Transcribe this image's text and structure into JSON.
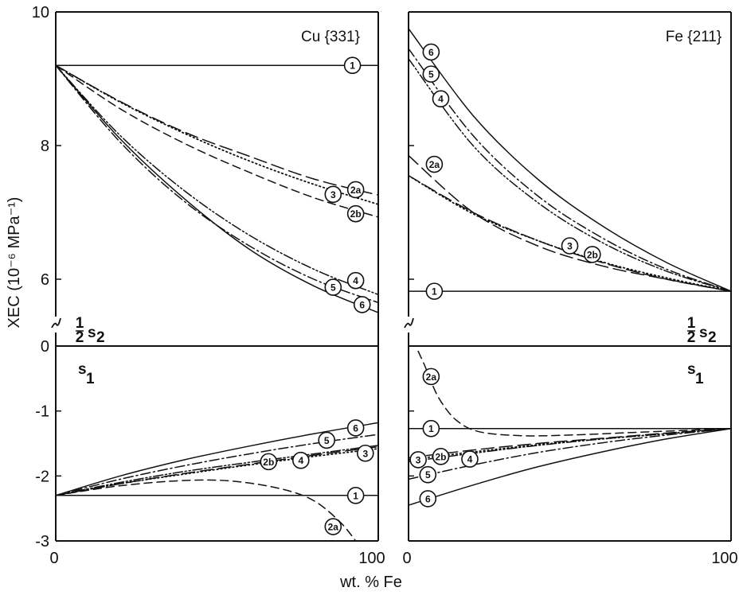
{
  "chart_data": {
    "type": "line",
    "xlabel": "wt. % Fe",
    "ylabel": "XEC (10⁻⁶ MPa⁻¹)",
    "xlim": [
      0,
      100
    ],
    "ylim_upper": [
      5,
      10
    ],
    "ylim_lower": [
      -3,
      0
    ],
    "yticks_upper": [
      "6",
      "8",
      "10"
    ],
    "yticks_lower": [
      "-3",
      "-2",
      "-1",
      "0"
    ],
    "yticks_upper_values": [
      6,
      8,
      10
    ],
    "yticks_lower_values": [
      -3,
      -2,
      -1,
      0
    ],
    "xtick_labels_left": [
      "0",
      "100"
    ],
    "xtick_labels_right": [
      "0",
      "100"
    ],
    "upper_region_label": {
      "frac": "1/2",
      "sym": "s",
      "sub": "2"
    },
    "lower_region_label": {
      "sym": "s",
      "sub": "1"
    },
    "panels": [
      {
        "label": "Cu {331}",
        "upper_series": [
          {
            "id": "1",
            "style": "solid",
            "x": [
              0,
              100
            ],
            "y": [
              9.2,
              9.2
            ],
            "marker": [
              92,
              9.2
            ]
          },
          {
            "id": "2a",
            "style": "longdash",
            "x": [
              0,
              20,
              40,
              60,
              80,
              100
            ],
            "y": [
              9.2,
              8.66,
              8.2,
              7.84,
              7.5,
              7.26
            ],
            "marker": [
              93,
              7.34
            ]
          },
          {
            "id": "2b",
            "style": "dash",
            "x": [
              0,
              20,
              40,
              60,
              80,
              100
            ],
            "y": [
              9.2,
              8.55,
              8.03,
              7.6,
              7.22,
              6.93
            ],
            "marker": [
              93,
              6.98
            ]
          },
          {
            "id": "3",
            "style": "dotted",
            "x": [
              0,
              20,
              40,
              60,
              80,
              100
            ],
            "y": [
              9.2,
              8.65,
              8.18,
              7.77,
              7.42,
              7.12
            ],
            "marker": [
              86,
              7.27
            ]
          },
          {
            "id": "4",
            "style": "dashdotdot",
            "x": [
              0,
              20,
              40,
              60,
              80,
              100
            ],
            "y": [
              9.2,
              8.15,
              7.32,
              6.66,
              6.15,
              5.77
            ],
            "marker": [
              93,
              5.98
            ]
          },
          {
            "id": "5",
            "style": "dashdot",
            "x": [
              0,
              20,
              40,
              60,
              80,
              100
            ],
            "y": [
              9.2,
              8.05,
              7.16,
              6.5,
              6.0,
              5.65
            ],
            "marker": [
              86,
              5.88
            ]
          },
          {
            "id": "6",
            "style": "solid",
            "x": [
              0,
              20,
              40,
              60,
              80,
              100
            ],
            "y": [
              9.2,
              8.1,
              7.2,
              6.45,
              5.9,
              5.5
            ],
            "marker": [
              95,
              5.62
            ]
          }
        ],
        "lower_series": [
          {
            "id": "1",
            "style": "solid",
            "x": [
              0,
              100
            ],
            "y": [
              -2.3,
              -2.3
            ],
            "marker": [
              93,
              -2.3
            ]
          },
          {
            "id": "2a",
            "style": "dash",
            "x": [
              0,
              20,
              40,
              55,
              70,
              80,
              88,
              93
            ],
            "y": [
              -2.3,
              -2.15,
              -2.07,
              -2.08,
              -2.2,
              -2.38,
              -2.7,
              -3.0
            ],
            "marker": [
              86,
              -2.78
            ]
          },
          {
            "id": "2b",
            "style": "longdash",
            "x": [
              0,
              20,
              40,
              60,
              80,
              100
            ],
            "y": [
              -2.3,
              -2.12,
              -1.96,
              -1.82,
              -1.68,
              -1.55
            ],
            "marker": [
              66,
              -1.78
            ]
          },
          {
            "id": "3",
            "style": "dotted",
            "x": [
              0,
              20,
              40,
              60,
              80,
              100
            ],
            "y": [
              -2.3,
              -2.12,
              -1.97,
              -1.83,
              -1.7,
              -1.58
            ],
            "marker": [
              96,
              -1.65
            ]
          },
          {
            "id": "4",
            "style": "dashdotdot",
            "x": [
              0,
              20,
              40,
              60,
              80,
              100
            ],
            "y": [
              -2.3,
              -2.1,
              -1.93,
              -1.79,
              -1.66,
              -1.53
            ],
            "marker": [
              76,
              -1.76
            ]
          },
          {
            "id": "5",
            "style": "dashdot",
            "x": [
              0,
              20,
              40,
              60,
              80,
              100
            ],
            "y": [
              -2.3,
              -2.05,
              -1.84,
              -1.66,
              -1.5,
              -1.36
            ],
            "marker": [
              84,
              -1.45
            ]
          },
          {
            "id": "6",
            "style": "solid",
            "x": [
              0,
              20,
              40,
              60,
              80,
              100
            ],
            "y": [
              -2.3,
              -2.0,
              -1.75,
              -1.54,
              -1.35,
              -1.18
            ],
            "marker": [
              93,
              -1.26
            ]
          }
        ]
      },
      {
        "label": "Fe {211}",
        "upper_series": [
          {
            "id": "1",
            "style": "solid",
            "x": [
              0,
              100
            ],
            "y": [
              5.82,
              5.82
            ],
            "marker": [
              8,
              5.82
            ]
          },
          {
            "id": "2a",
            "style": "longdash",
            "x": [
              0,
              20,
              40,
              60,
              80,
              100
            ],
            "y": [
              7.85,
              7.0,
              6.5,
              6.2,
              6.0,
              5.82
            ],
            "marker": [
              8,
              7.72
            ]
          },
          {
            "id": "2b",
            "style": "longdash",
            "x": [
              0,
              20,
              40,
              60,
              80,
              100
            ],
            "y": [
              7.55,
              7.0,
              6.58,
              6.25,
              6.0,
              5.82
            ],
            "marker": [
              57,
              6.37
            ]
          },
          {
            "id": "3",
            "style": "dotted",
            "x": [
              0,
              20,
              40,
              60,
              80,
              100
            ],
            "y": [
              7.55,
              6.98,
              6.58,
              6.26,
              6.02,
              5.82
            ],
            "marker": [
              50,
              6.5
            ]
          },
          {
            "id": "4",
            "style": "dashdotdot",
            "x": [
              0,
              20,
              40,
              60,
              80,
              100
            ],
            "y": [
              9.3,
              8.0,
              7.15,
              6.55,
              6.12,
              5.82
            ],
            "marker": [
              10,
              8.7
            ]
          },
          {
            "id": "5",
            "style": "dashdot",
            "x": [
              0,
              20,
              40,
              60,
              80,
              100
            ],
            "y": [
              9.45,
              8.15,
              7.25,
              6.62,
              6.15,
              5.82
            ],
            "marker": [
              7,
              9.07
            ]
          },
          {
            "id": "6",
            "style": "solid",
            "x": [
              0,
              20,
              40,
              60,
              80,
              100
            ],
            "y": [
              9.75,
              8.45,
              7.5,
              6.8,
              6.25,
              5.82
            ],
            "marker": [
              7,
              9.4
            ]
          }
        ],
        "lower_series": [
          {
            "id": "1",
            "style": "solid",
            "x": [
              0,
              100
            ],
            "y": [
              -1.27,
              -1.27
            ],
            "marker": [
              7,
              -1.27
            ]
          },
          {
            "id": "2a",
            "style": "dash",
            "x": [
              3,
              5,
              7,
              10,
              15,
              22,
              35,
              50,
              70,
              100
            ],
            "y": [
              -0.08,
              -0.3,
              -0.55,
              -0.85,
              -1.15,
              -1.32,
              -1.38,
              -1.37,
              -1.33,
              -1.27
            ],
            "marker": [
              7,
              -0.47
            ]
          },
          {
            "id": "2b",
            "style": "longdash",
            "x": [
              0,
              20,
              40,
              60,
              80,
              100
            ],
            "y": [
              -1.72,
              -1.6,
              -1.5,
              -1.42,
              -1.34,
              -1.27
            ],
            "marker": [
              10,
              -1.7
            ]
          },
          {
            "id": "3",
            "style": "dotted",
            "x": [
              0,
              20,
              40,
              60,
              80,
              100
            ],
            "y": [
              -1.75,
              -1.63,
              -1.52,
              -1.43,
              -1.35,
              -1.27
            ],
            "marker": [
              3,
              -1.75
            ]
          },
          {
            "id": "4",
            "style": "dashdotdot",
            "x": [
              0,
              20,
              40,
              60,
              80,
              100
            ],
            "y": [
              -1.78,
              -1.65,
              -1.53,
              -1.43,
              -1.35,
              -1.27
            ],
            "marker": [
              19,
              -1.74
            ]
          },
          {
            "id": "5",
            "style": "dashdot",
            "x": [
              0,
              20,
              40,
              60,
              80,
              100
            ],
            "y": [
              -2.05,
              -1.83,
              -1.64,
              -1.49,
              -1.37,
              -1.27
            ],
            "marker": [
              6,
              -1.98
            ]
          },
          {
            "id": "6",
            "style": "solid",
            "x": [
              0,
              20,
              40,
              60,
              80,
              100
            ],
            "y": [
              -2.45,
              -2.14,
              -1.86,
              -1.63,
              -1.43,
              -1.27
            ],
            "marker": [
              6,
              -2.35
            ]
          }
        ]
      }
    ]
  }
}
